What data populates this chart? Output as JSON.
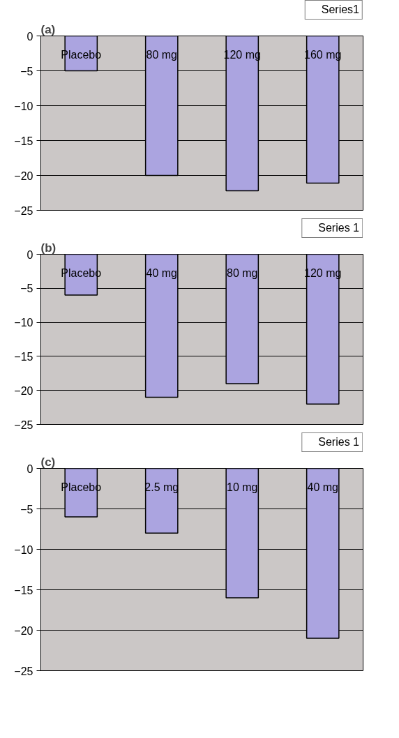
{
  "chart_data": [
    {
      "type": "bar",
      "title": "(a)",
      "categories": [
        "Placebo",
        "80 mg",
        "120 mg",
        "160 mg"
      ],
      "series": [
        {
          "name": "Series1",
          "color": "#aba4e0",
          "values": [
            -5,
            -20,
            -22.2,
            -21.1
          ]
        }
      ],
      "ylim": [
        -25,
        0
      ],
      "yticks": [
        -25,
        -20,
        -15,
        -10,
        -5,
        0
      ],
      "grid": "y",
      "legend": "top right"
    },
    {
      "type": "bar",
      "title": "(b)",
      "categories": [
        "Placebo",
        "40 mg",
        "80 mg",
        "120 mg"
      ],
      "series": [
        {
          "name": "Series 1",
          "color": "#aba4e0",
          "values": [
            -6,
            -21,
            -19,
            -22
          ]
        }
      ],
      "ylim": [
        -25,
        0
      ],
      "yticks": [
        -25,
        -20,
        -15,
        -10,
        -5,
        0
      ],
      "grid": "y",
      "legend": "top right"
    },
    {
      "type": "bar",
      "title": "(c)",
      "categories": [
        "Placebo",
        "2.5 mg",
        "10 mg",
        "40 mg"
      ],
      "series": [
        {
          "name": "Series 1",
          "color": "#aba4e0",
          "values": [
            -6,
            -8,
            -16,
            -21
          ]
        }
      ],
      "ylim": [
        -25,
        0
      ],
      "yticks": [
        -25,
        -20,
        -15,
        -10,
        -5,
        0
      ],
      "grid": "y",
      "legend": "top right"
    }
  ]
}
